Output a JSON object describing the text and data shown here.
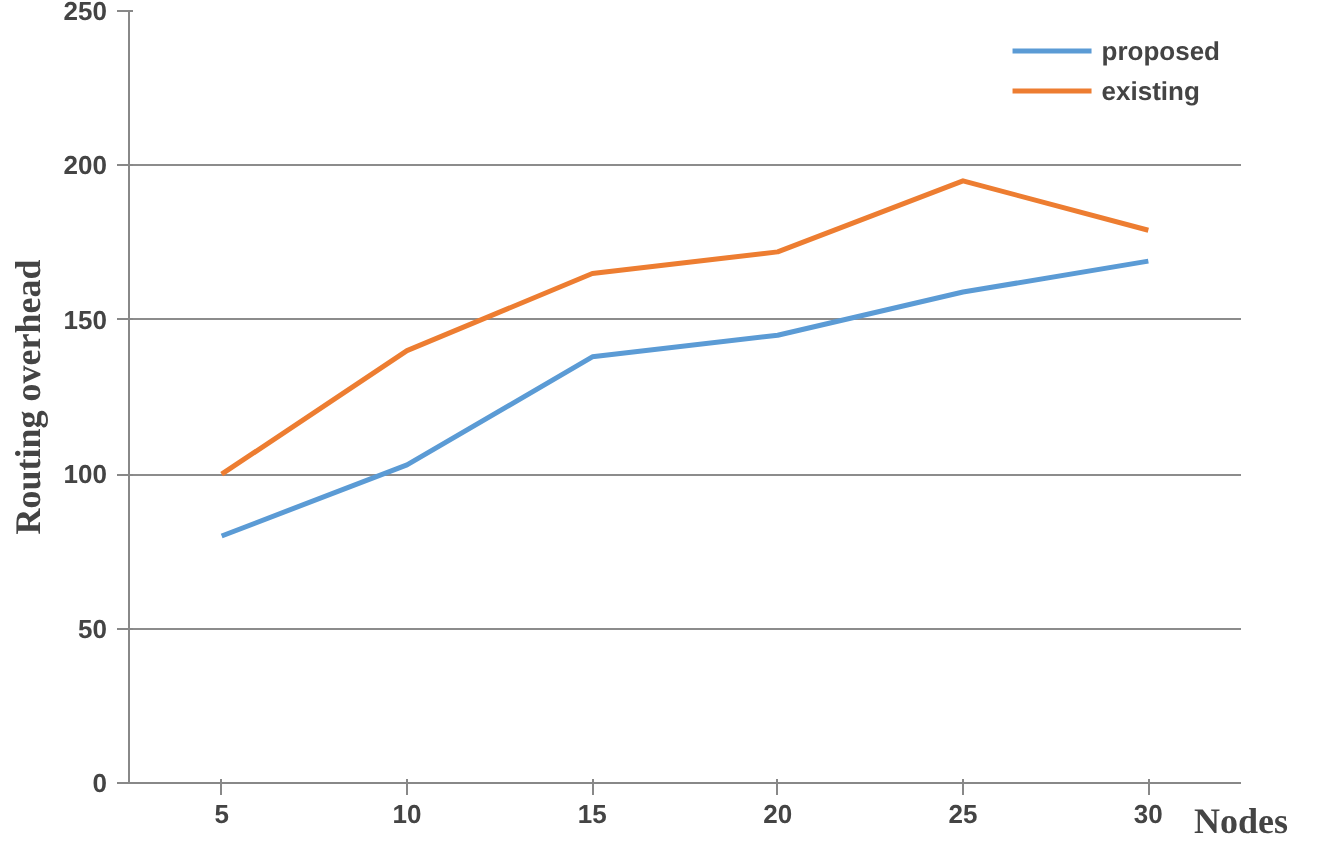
{
  "chart_data": {
    "type": "line",
    "xlabel": "Nodes",
    "ylabel": "Routing overhead",
    "categories": [
      "5",
      "10",
      "15",
      "20",
      "25",
      "30"
    ],
    "series": [
      {
        "name": "proposed",
        "color": "#5b9bd5",
        "values": [
          80,
          103,
          138,
          145,
          159,
          169
        ]
      },
      {
        "name": "existing",
        "color": "#ed7d31",
        "values": [
          100,
          140,
          165,
          172,
          195,
          179
        ]
      }
    ],
    "ylim": [
      0,
      250
    ],
    "yticks": [
      0,
      50,
      100,
      150,
      200,
      250
    ],
    "grid": "y",
    "legend": "top right"
  }
}
